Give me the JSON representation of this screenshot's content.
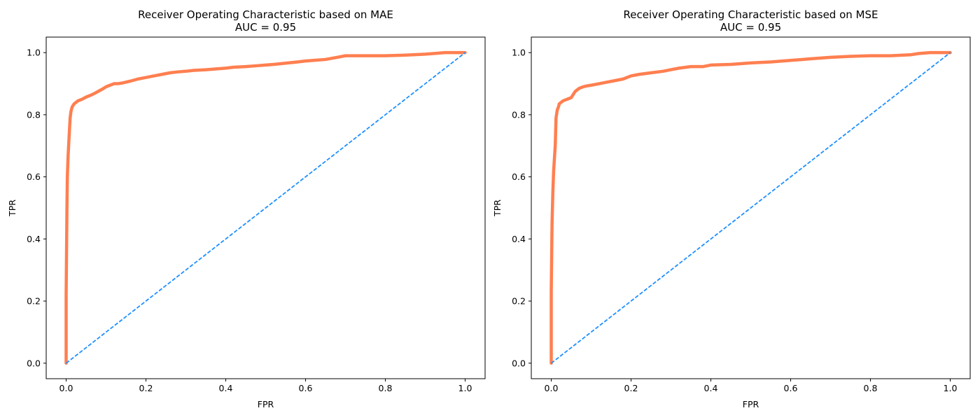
{
  "chart_data": [
    {
      "type": "line",
      "title": "Receiver Operating Characteristic based on MAE",
      "subtitle": "AUC = 0.95",
      "xlabel": "FPR",
      "ylabel": "TPR",
      "xlim": [
        -0.05,
        1.05
      ],
      "ylim": [
        -0.05,
        1.05
      ],
      "xticks": [
        0.0,
        0.2,
        0.4,
        0.6,
        0.8,
        1.0
      ],
      "yticks": [
        0.0,
        0.2,
        0.4,
        0.6,
        0.8,
        1.0
      ],
      "xtick_labels": [
        "0.0",
        "0.2",
        "0.4",
        "0.6",
        "0.8",
        "1.0"
      ],
      "ytick_labels": [
        "0.0",
        "0.2",
        "0.4",
        "0.6",
        "0.8",
        "1.0"
      ],
      "grid": false,
      "series": [
        {
          "color": "#ff7f50",
          "style": "solid",
          "x": [
            0.0,
            0.0,
            0.002,
            0.003,
            0.005,
            0.007,
            0.01,
            0.012,
            0.015,
            0.02,
            0.025,
            0.03,
            0.04,
            0.05,
            0.06,
            0.07,
            0.08,
            0.09,
            0.1,
            0.11,
            0.12,
            0.13,
            0.14,
            0.15,
            0.16,
            0.18,
            0.2,
            0.22,
            0.24,
            0.26,
            0.28,
            0.3,
            0.32,
            0.35,
            0.38,
            0.4,
            0.42,
            0.45,
            0.48,
            0.5,
            0.52,
            0.55,
            0.58,
            0.6,
            0.62,
            0.65,
            0.68,
            0.7,
            0.72,
            0.75,
            0.8,
            0.85,
            0.9,
            0.92,
            0.95,
            1.0
          ],
          "y": [
            0.0,
            0.22,
            0.5,
            0.6,
            0.67,
            0.72,
            0.79,
            0.81,
            0.825,
            0.835,
            0.84,
            0.845,
            0.85,
            0.857,
            0.862,
            0.868,
            0.875,
            0.882,
            0.89,
            0.895,
            0.9,
            0.9,
            0.902,
            0.905,
            0.908,
            0.915,
            0.92,
            0.925,
            0.93,
            0.935,
            0.938,
            0.94,
            0.943,
            0.945,
            0.948,
            0.95,
            0.953,
            0.955,
            0.958,
            0.96,
            0.962,
            0.966,
            0.97,
            0.973,
            0.975,
            0.978,
            0.985,
            0.99,
            0.99,
            0.99,
            0.99,
            0.992,
            0.995,
            0.997,
            1.0,
            1.0
          ]
        },
        {
          "color": "#1e90ff",
          "style": "dashed",
          "x": [
            0.0,
            1.0
          ],
          "y": [
            0.0,
            1.0
          ]
        }
      ]
    },
    {
      "type": "line",
      "title": "Receiver Operating Characteristic based on MSE",
      "subtitle": "AUC = 0.95",
      "xlabel": "FPR",
      "ylabel": "TPR",
      "xlim": [
        -0.05,
        1.05
      ],
      "ylim": [
        -0.05,
        1.05
      ],
      "xticks": [
        0.0,
        0.2,
        0.4,
        0.6,
        0.8,
        1.0
      ],
      "yticks": [
        0.0,
        0.2,
        0.4,
        0.6,
        0.8,
        1.0
      ],
      "xtick_labels": [
        "0.0",
        "0.2",
        "0.4",
        "0.6",
        "0.8",
        "1.0"
      ],
      "ytick_labels": [
        "0.0",
        "0.2",
        "0.4",
        "0.6",
        "0.8",
        "1.0"
      ],
      "grid": false,
      "series": [
        {
          "color": "#ff7f50",
          "style": "solid",
          "x": [
            0.0,
            0.0,
            0.002,
            0.004,
            0.006,
            0.008,
            0.01,
            0.012,
            0.015,
            0.018,
            0.02,
            0.025,
            0.03,
            0.04,
            0.05,
            0.055,
            0.06,
            0.065,
            0.07,
            0.08,
            0.09,
            0.1,
            0.12,
            0.14,
            0.16,
            0.18,
            0.2,
            0.22,
            0.25,
            0.28,
            0.3,
            0.32,
            0.35,
            0.38,
            0.4,
            0.45,
            0.48,
            0.5,
            0.55,
            0.6,
            0.65,
            0.7,
            0.75,
            0.8,
            0.85,
            0.9,
            0.92,
            0.95,
            1.0
          ],
          "y": [
            0.0,
            0.23,
            0.45,
            0.55,
            0.62,
            0.66,
            0.7,
            0.79,
            0.815,
            0.825,
            0.835,
            0.84,
            0.845,
            0.85,
            0.855,
            0.865,
            0.875,
            0.88,
            0.885,
            0.89,
            0.893,
            0.895,
            0.9,
            0.905,
            0.91,
            0.915,
            0.925,
            0.93,
            0.935,
            0.94,
            0.945,
            0.95,
            0.955,
            0.955,
            0.96,
            0.962,
            0.965,
            0.967,
            0.97,
            0.975,
            0.98,
            0.985,
            0.988,
            0.99,
            0.99,
            0.993,
            0.997,
            1.0,
            1.0
          ]
        },
        {
          "color": "#1e90ff",
          "style": "dashed",
          "x": [
            0.0,
            1.0
          ],
          "y": [
            0.0,
            1.0
          ]
        }
      ]
    }
  ]
}
